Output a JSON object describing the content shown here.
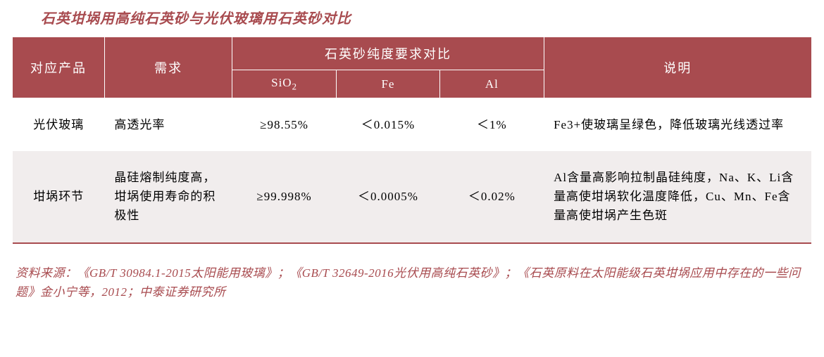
{
  "colors": {
    "accent": "#a84b4f",
    "alt_row_bg": "#f1eded",
    "text": "#333333"
  },
  "title": "石英坩埚用高纯石英砂与光伏玻璃用石英砂对比",
  "table": {
    "col_widths_pct": [
      11.5,
      16,
      13,
      13,
      13,
      33.5
    ],
    "header": {
      "product": "对应产品",
      "demand": "需求",
      "purity_group": "石英砂纯度要求对比",
      "sio2": "SiO",
      "sio2_sub": "2",
      "fe": "Fe",
      "al": "Al",
      "note": "说明"
    },
    "rows": [
      {
        "product": "光伏玻璃",
        "demand": "高透光率",
        "sio2": "≥98.55%",
        "fe": "＜0.015%",
        "al": "＜1%",
        "note": "Fe3+使玻璃呈绿色，降低玻璃光线透过率"
      },
      {
        "product": "坩埚环节",
        "demand": "晶硅熔制纯度高，坩埚使用寿命的积极性",
        "sio2": "≥99.998%",
        "fe": "＜0.0005%",
        "al": "＜0.02%",
        "note": "Al含量高影响拉制晶硅纯度，Na、K、Li含量高使坩埚软化温度降低，Cu、Mn、Fe含量高使坩埚产生色斑"
      }
    ]
  },
  "source": "资料来源：《GB/T 30984.1-2015太阳能用玻璃》；《GB/T 32649-2016光伏用高纯石英砂》；《石英原料在太阳能级石英坩埚应用中存在的一些问题》金小宁等，2012；中泰证券研究所"
}
